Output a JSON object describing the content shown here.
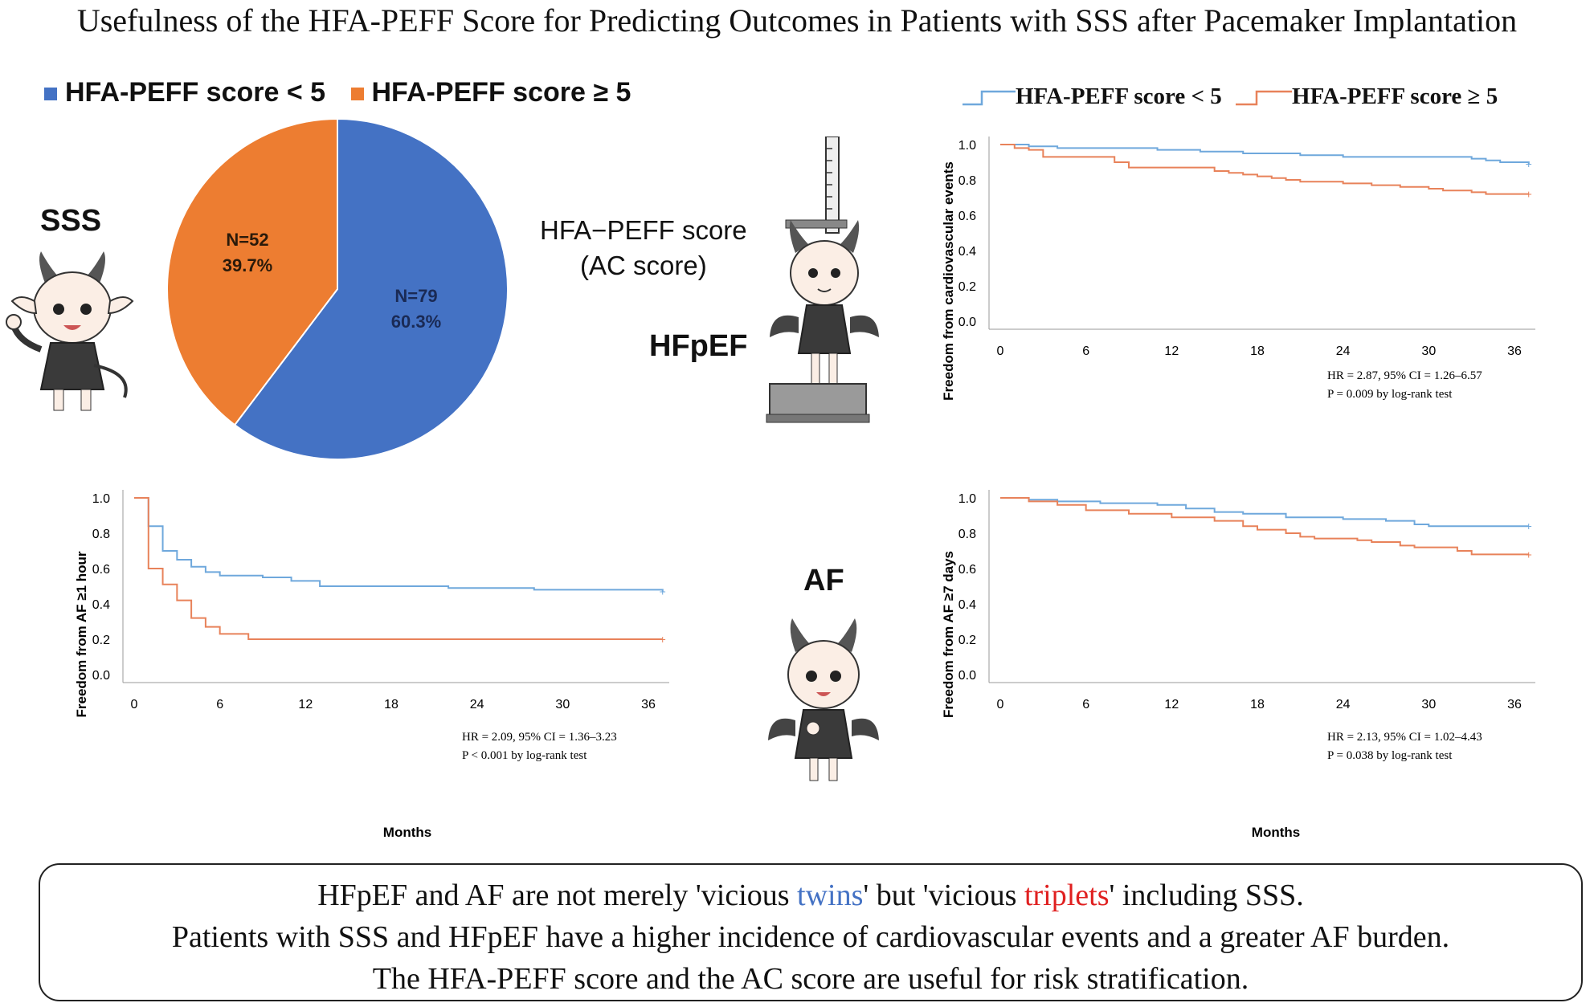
{
  "title": "Usefulness of the HFA-PEFF Score for Predicting Outcomes in Patients with SSS after Pacemaker Implantation",
  "colors": {
    "low": "#4472C4",
    "high": "#ED7D31",
    "km_low": "#6FA8DC",
    "km_high": "#E8825A"
  },
  "labels": {
    "sss": "SSS",
    "hfpef": "HFpEF",
    "af": "AF",
    "score_line1": "HFA−PEFF score",
    "score_line2": "(AC score)"
  },
  "summary": {
    "line1_a": "HFpEF and AF are not merely 'vicious ",
    "line1_twins": "twins",
    "line1_b": "' but 'vicious ",
    "line1_triplets": "triplets",
    "line1_c": "' including SSS.",
    "line2": "Patients with SSS and HFpEF have a higher incidence of cardiovascular events and a greater AF burden.",
    "line3": "The HFA-PEFF score and the AC score are useful for risk stratification."
  },
  "chart_data": [
    {
      "type": "pie",
      "legend": [
        "HFA-PEFF score < 5",
        "HFA-PEFF score ≥ 5"
      ],
      "slices": [
        {
          "name": "HFA-PEFF score < 5",
          "value": 60.3,
          "n_label": "N=79",
          "pct_label": "60.3%"
        },
        {
          "name": "HFA-PEFF score ≥ 5",
          "value": 39.7,
          "n_label": "N=52",
          "pct_label": "39.7%"
        }
      ]
    },
    {
      "type": "line",
      "legend": [
        "HFA-PEFF score < 5",
        "HFA-PEFF score ≥ 5"
      ],
      "ylabel": "Freedom from cardiovascular events",
      "xlabel": "",
      "xticks": [
        "0",
        "6",
        "12",
        "18",
        "24",
        "30",
        "36"
      ],
      "yticks": [
        "0.0",
        "0.2",
        "0.4",
        "0.6",
        "0.8",
        "1.0"
      ],
      "xlim": [
        0,
        36
      ],
      "ylim": [
        0,
        1
      ],
      "annotation": [
        "HR = 2.87, 95% CI = 1.26–6.57",
        "P = 0.009 by log-rank test"
      ],
      "series": [
        {
          "name": "HFA-PEFF score < 5",
          "x": [
            0,
            2,
            4,
            7,
            11,
            14,
            17,
            21,
            24,
            26,
            30,
            33,
            34,
            35,
            37
          ],
          "y": [
            1.0,
            0.99,
            0.98,
            0.98,
            0.97,
            0.96,
            0.95,
            0.94,
            0.93,
            0.93,
            0.93,
            0.92,
            0.91,
            0.9,
            0.89
          ]
        },
        {
          "name": "HFA-PEFF score ≥ 5",
          "x": [
            0,
            1,
            2,
            3,
            5,
            8,
            9,
            12,
            15,
            16,
            17,
            18,
            19,
            20,
            21,
            22,
            24,
            26,
            28,
            30,
            31,
            33,
            34,
            37
          ],
          "y": [
            1.0,
            0.98,
            0.97,
            0.93,
            0.93,
            0.9,
            0.87,
            0.87,
            0.85,
            0.84,
            0.83,
            0.82,
            0.81,
            0.8,
            0.79,
            0.79,
            0.78,
            0.77,
            0.76,
            0.75,
            0.74,
            0.73,
            0.72,
            0.72
          ]
        }
      ]
    },
    {
      "type": "line",
      "ylabel": "Freedom from AF ≥1 hour",
      "xlabel": "Months",
      "xticks": [
        "0",
        "6",
        "12",
        "18",
        "24",
        "30",
        "36"
      ],
      "yticks": [
        "0.0",
        "0.2",
        "0.4",
        "0.6",
        "0.8",
        "1.0"
      ],
      "xlim": [
        0,
        36
      ],
      "ylim": [
        0,
        1
      ],
      "annotation": [
        "HR = 2.09, 95% CI = 1.36–3.23",
        "P < 0.001 by log-rank test"
      ],
      "series": [
        {
          "name": "HFA-PEFF score < 5",
          "x": [
            0,
            1,
            2,
            3,
            4,
            5,
            6,
            9,
            11,
            13,
            22,
            28,
            37
          ],
          "y": [
            1.0,
            0.84,
            0.7,
            0.65,
            0.61,
            0.58,
            0.56,
            0.55,
            0.53,
            0.5,
            0.49,
            0.48,
            0.47
          ]
        },
        {
          "name": "HFA-PEFF score ≥ 5",
          "x": [
            0,
            1,
            2,
            3,
            4,
            5,
            6,
            8,
            37
          ],
          "y": [
            1.0,
            0.6,
            0.51,
            0.42,
            0.32,
            0.27,
            0.23,
            0.2,
            0.2
          ]
        }
      ]
    },
    {
      "type": "line",
      "ylabel": "Freedom from AF ≥7 days",
      "xlabel": "Months",
      "xticks": [
        "0",
        "6",
        "12",
        "18",
        "24",
        "30",
        "36"
      ],
      "yticks": [
        "0.0",
        "0.2",
        "0.4",
        "0.6",
        "0.8",
        "1.0"
      ],
      "xlim": [
        0,
        36
      ],
      "ylim": [
        0,
        1
      ],
      "annotation": [
        "HR = 2.13, 95% CI = 1.02–4.43",
        "P = 0.038 by log-rank test"
      ],
      "series": [
        {
          "name": "HFA-PEFF score < 5",
          "x": [
            0,
            2,
            4,
            7,
            11,
            13,
            15,
            17,
            20,
            24,
            27,
            29,
            30,
            37
          ],
          "y": [
            1.0,
            0.99,
            0.98,
            0.97,
            0.96,
            0.94,
            0.92,
            0.91,
            0.89,
            0.88,
            0.87,
            0.85,
            0.84,
            0.84
          ]
        },
        {
          "name": "HFA-PEFF score ≥ 5",
          "x": [
            0,
            2,
            4,
            6,
            9,
            12,
            15,
            17,
            18,
            20,
            21,
            22,
            24,
            25,
            26,
            28,
            29,
            31,
            32,
            33,
            37
          ],
          "y": [
            1.0,
            0.98,
            0.96,
            0.93,
            0.91,
            0.89,
            0.87,
            0.84,
            0.82,
            0.8,
            0.78,
            0.77,
            0.77,
            0.76,
            0.75,
            0.73,
            0.72,
            0.72,
            0.7,
            0.68,
            0.68
          ]
        }
      ]
    }
  ]
}
